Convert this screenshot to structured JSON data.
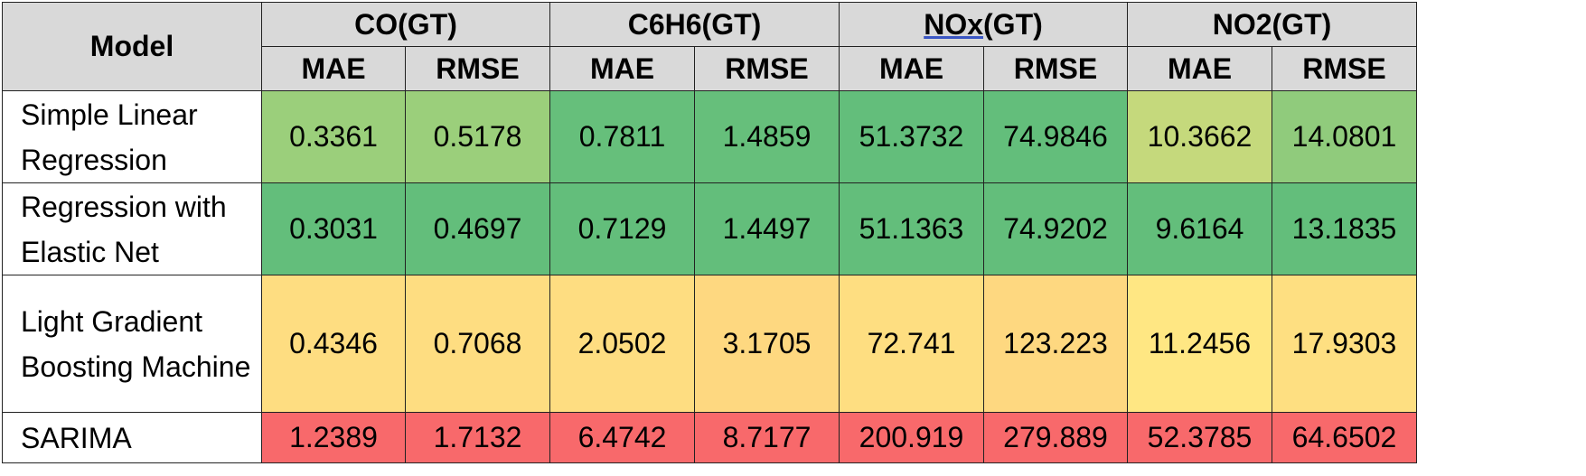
{
  "table": {
    "model_header": "Model",
    "groups": [
      {
        "label_pre": "",
        "label_ul": "CO",
        "label_post": "(GT)",
        "underline": false
      },
      {
        "label_pre": "",
        "label_ul": "C6H6",
        "label_post": "(GT)",
        "underline": false
      },
      {
        "label_pre": "",
        "label_ul": "NOx",
        "label_post": "(GT)",
        "underline": true
      },
      {
        "label_pre": "",
        "label_ul": "NO2",
        "label_post": "(GT)",
        "underline": false
      }
    ],
    "sub_headers": [
      "MAE",
      "RMSE",
      "MAE",
      "RMSE",
      "MAE",
      "RMSE",
      "MAE",
      "RMSE"
    ],
    "rows": [
      {
        "model": "Simple Linear Regression",
        "values": [
          "0.3361",
          "0.5178",
          "0.7811",
          "1.4859",
          "51.3732",
          "74.9846",
          "10.3662",
          "14.0801"
        ],
        "colors": [
          "#9bcf7b",
          "#9bcf7b",
          "#66bf7b",
          "#66bf7b",
          "#63be7b",
          "#63be7b",
          "#c5d97c",
          "#90cb7c"
        ]
      },
      {
        "model": "Regression with Elastic Net",
        "values": [
          "0.3031",
          "0.4697",
          "0.7129",
          "1.4497",
          "51.1363",
          "74.9202",
          "9.6164",
          "13.1835"
        ],
        "colors": [
          "#63be7b",
          "#63be7b",
          "#63be7b",
          "#63be7b",
          "#63be7b",
          "#63be7b",
          "#63be7b",
          "#63be7b"
        ]
      },
      {
        "model": "Light Gradient Boosting Machine",
        "values": [
          "0.4346",
          "0.7068",
          "2.0502",
          "3.1705",
          "72.741",
          "123.223",
          "11.2456",
          "17.9303"
        ],
        "colors": [
          "#fedd81",
          "#fedd81",
          "#fedd81",
          "#fed880",
          "#fede81",
          "#fed880",
          "#ffe783",
          "#fedf81"
        ]
      },
      {
        "model": "SARIMA",
        "values": [
          "1.2389",
          "1.7132",
          "6.4742",
          "8.7177",
          "200.919",
          "279.889",
          "52.3785",
          "64.6502"
        ],
        "colors": [
          "#f8696b",
          "#f8696b",
          "#f8696b",
          "#f8696b",
          "#f8696b",
          "#f8696b",
          "#f8696b",
          "#f8696b"
        ]
      }
    ]
  }
}
